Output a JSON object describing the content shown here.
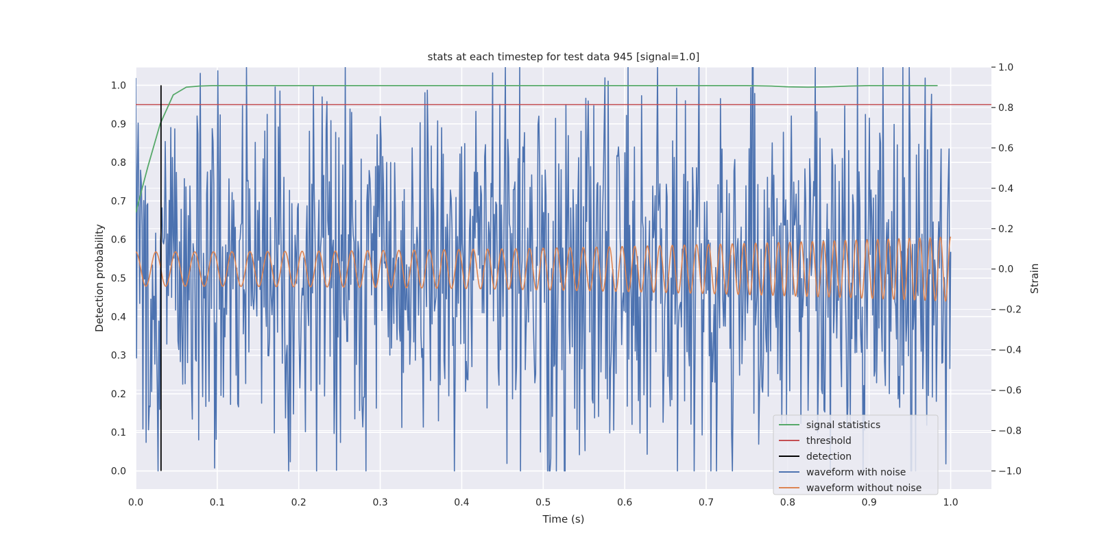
{
  "chart_data": {
    "type": "line",
    "title": "stats at each timestep for test data 945 [signal=1.0]",
    "xlabel": "Time (s)",
    "ylabel_left": "Detection probability",
    "ylabel_right": "Strain",
    "xlim": [
      0.0,
      1.05
    ],
    "ylim_left": [
      -0.047,
      1.047
    ],
    "ylim_right": [
      -1.09,
      1.0
    ],
    "x_ticks": [
      "0.0",
      "0.1",
      "0.2",
      "0.3",
      "0.4",
      "0.5",
      "0.6",
      "0.7",
      "0.8",
      "0.9",
      "1.0"
    ],
    "y_ticks_left": [
      "0.0",
      "0.1",
      "0.2",
      "0.3",
      "0.4",
      "0.5",
      "0.6",
      "0.7",
      "0.8",
      "0.9",
      "1.0"
    ],
    "y_ticks_right": [
      "−1.0",
      "−0.8",
      "−0.6",
      "−0.4",
      "−0.2",
      "0.0",
      "0.2",
      "0.4",
      "0.6",
      "0.8",
      "1.0"
    ],
    "grid": true,
    "legend_position": "lower-right",
    "series": [
      {
        "name": "signal statistics",
        "axis": "left",
        "color": "#55a868",
        "x": [
          0.0,
          0.015,
          0.03,
          0.046,
          0.062,
          0.078,
          0.094,
          0.2,
          0.4,
          0.6,
          0.75,
          0.78,
          0.8,
          0.825,
          0.85,
          0.875,
          0.9,
          0.95,
          0.984
        ],
        "y": [
          0.67,
          0.79,
          0.9,
          0.975,
          0.995,
          0.998,
          0.999,
          0.999,
          0.999,
          0.999,
          0.999,
          0.998,
          0.996,
          0.995,
          0.996,
          0.998,
          0.999,
          0.999,
          0.999
        ]
      },
      {
        "name": "threshold",
        "axis": "left",
        "color": "#c44e52",
        "x": [
          0.0,
          1.05
        ],
        "y": [
          0.95,
          0.95
        ]
      },
      {
        "name": "detection",
        "axis": "left",
        "color": "#000000",
        "x": [
          0.031,
          0.031
        ],
        "y": [
          0.0,
          1.0
        ]
      },
      {
        "name": "waveform with noise",
        "axis": "right",
        "color": "#4c72b0",
        "x_range": [
          0.0,
          1.0
        ],
        "samples": 1024,
        "amplitude_range": [
          -1.0,
          1.0
        ]
      },
      {
        "name": "waveform without noise",
        "axis": "right",
        "color": "#dd8452",
        "x_range": [
          0.0,
          1.0
        ],
        "samples": 2048,
        "amplitude_range": [
          -0.2,
          0.2
        ],
        "frequency_start_hz": 40,
        "frequency_end_hz": 80
      }
    ]
  }
}
